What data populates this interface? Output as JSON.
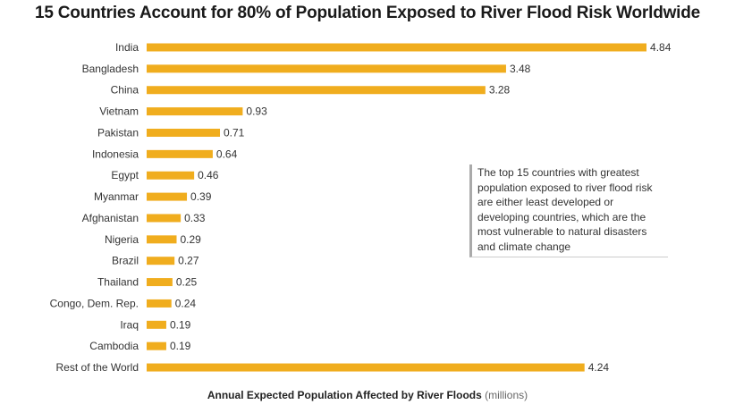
{
  "chart_data": {
    "type": "bar",
    "orientation": "horizontal",
    "title": "15 Countries Account for 80% of Population Exposed to River Flood Risk Worldwide",
    "categories": [
      "India",
      "Bangladesh",
      "China",
      "Vietnam",
      "Pakistan",
      "Indonesia",
      "Egypt",
      "Myanmar",
      "Afghanistan",
      "Nigeria",
      "Brazil",
      "Thailand",
      "Congo, Dem. Rep.",
      "Iraq",
      "Cambodia",
      "Rest of the World"
    ],
    "values": [
      4.84,
      3.48,
      3.28,
      0.93,
      0.71,
      0.64,
      0.46,
      0.39,
      0.33,
      0.29,
      0.27,
      0.25,
      0.24,
      0.19,
      0.19,
      4.24
    ],
    "value_labels": [
      "4.84",
      "3.48",
      "3.28",
      "0.93",
      "0.71",
      "0.64",
      "0.46",
      "0.39",
      "0.33",
      "0.29",
      "0.27",
      "0.25",
      "0.24",
      "0.19",
      "0.19",
      "4.24"
    ],
    "xlabel": "Annual Expected Population Affected by River Floods",
    "xlabel_unit": "(millions)",
    "xlim": [
      0,
      5
    ],
    "grid": false,
    "bar_color": "#f0ad1e",
    "annotation": "The top 15 countries with greatest population exposed to river flood risk are either least developed or developing countries, which are the most vulnerable to natural disasters and climate change"
  }
}
